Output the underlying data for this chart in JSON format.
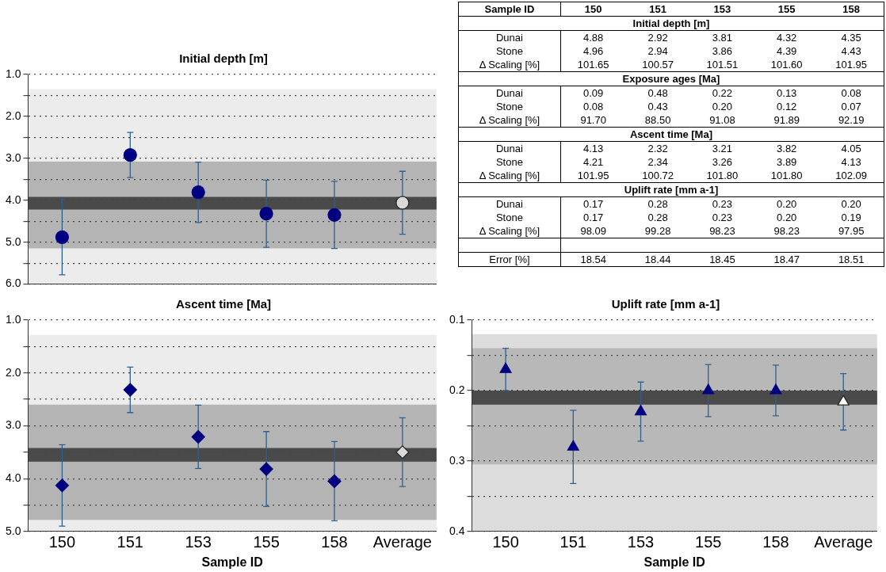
{
  "chart_data": [
    {
      "type": "scatter",
      "title": "Initial depth [m]",
      "categories": [
        null,
        null,
        null,
        null,
        null,
        null
      ],
      "series": [
        {
          "colors": [
            "#000080",
            "#000080",
            "#000080",
            "#000080",
            "#000080",
            "#d9d9d9"
          ],
          "values": [
            4.88,
            2.92,
            3.81,
            4.32,
            4.35,
            4.06
          ],
          "errors": [
            0.9,
            0.54,
            0.72,
            0.8,
            0.8,
            0.75
          ]
        }
      ],
      "ylim": [
        6,
        1
      ],
      "yticks": [
        {
          "value": 1,
          "label": "1.0"
        },
        {
          "value": 1.5,
          "label": null
        },
        {
          "value": 2,
          "label": "2.0"
        },
        {
          "value": 2.5,
          "label": null
        },
        {
          "value": 3,
          "label": "3.0"
        },
        {
          "value": 3.5,
          "label": null
        },
        {
          "value": 4,
          "label": "4.0"
        },
        {
          "value": 4.5,
          "label": null
        },
        {
          "value": 5,
          "label": "5.0"
        },
        {
          "value": 5.5,
          "label": null
        },
        {
          "value": 6,
          "label": "6.0"
        }
      ],
      "marker": "circle",
      "grid": "y",
      "tick_labels": "y",
      "bands": [
        {
          "axis": "y",
          "from": 1.35,
          "to": 6,
          "color": "#ececec"
        },
        {
          "axis": "y",
          "from": 3.08,
          "to": 5.15,
          "color": "#b4b4b4"
        },
        {
          "axis": "y",
          "from": 3.92,
          "to": 4.22,
          "color": "#4a4a4a"
        }
      ]
    },
    {
      "type": "other",
      "categories": [
        "Sample ID",
        "150",
        "151",
        "153",
        "155",
        "158"
      ],
      "y_categories": [
        "Initial depth [m]",
        "Dunai",
        "Stone",
        "Δ Scaling [%]",
        "Exposure ages [Ma]",
        "Dunai",
        "Stone",
        "Δ Scaling [%]",
        "Ascent time [Ma]",
        "Dunai",
        "Stone",
        "Δ Scaling [%]",
        "Uplift rate [mm a-1]",
        "Dunai",
        "Stone",
        "Δ Scaling [%]",
        null,
        "Error [%]"
      ],
      "cell_labels": [
        null,
        [
          "4.88",
          "2.92",
          "3.81",
          "4.32",
          "4.35"
        ],
        [
          "4.96",
          "2.94",
          "3.86",
          "4.39",
          "4.43"
        ],
        [
          "101.65",
          "100.57",
          "101.51",
          "101.60",
          "101.95"
        ],
        null,
        [
          "0.09",
          "0.48",
          "0.22",
          "0.13",
          "0.08"
        ],
        [
          "0.08",
          "0.43",
          "0.20",
          "0.12",
          "0.07"
        ],
        [
          "91.70",
          "88.50",
          "91.08",
          "91.89",
          "92.19"
        ],
        null,
        [
          "4.13",
          "2.32",
          "3.21",
          "3.82",
          "4.05"
        ],
        [
          "4.21",
          "2.34",
          "3.26",
          "3.89",
          "4.13"
        ],
        [
          "101.95",
          "100.72",
          "101.80",
          "101.80",
          "102.09"
        ],
        null,
        [
          "0.17",
          "0.28",
          "0.23",
          "0.20",
          "0.20"
        ],
        [
          "0.17",
          "0.28",
          "0.23",
          "0.20",
          "0.19"
        ],
        [
          "98.09",
          "99.28",
          "98.23",
          "98.23",
          "97.95"
        ],
        null,
        [
          "18.54",
          "18.44",
          "18.45",
          "18.47",
          "18.51"
        ]
      ]
    },
    {
      "type": "scatter",
      "title": "Ascent time [Ma]",
      "xlabel": "Sample ID",
      "categories": [
        "150",
        "151",
        "153",
        "155",
        "158",
        "Average"
      ],
      "series": [
        {
          "colors": [
            "#000080",
            "#000080",
            "#000080",
            "#000080",
            "#000080",
            "#d9d9d9"
          ],
          "values": [
            4.13,
            2.32,
            3.21,
            3.82,
            4.05,
            3.5
          ],
          "errors": [
            0.77,
            0.43,
            0.6,
            0.71,
            0.75,
            0.65
          ]
        }
      ],
      "ylim": [
        5,
        1
      ],
      "yticks": [
        {
          "value": 1,
          "label": "1.0"
        },
        {
          "value": 1.5,
          "label": null
        },
        {
          "value": 2,
          "label": "2.0"
        },
        {
          "value": 2.5,
          "label": null
        },
        {
          "value": 3,
          "label": "3.0"
        },
        {
          "value": 3.5,
          "label": null
        },
        {
          "value": 4,
          "label": "4.0"
        },
        {
          "value": 4.5,
          "label": null
        },
        {
          "value": 5,
          "label": "5.0"
        }
      ],
      "marker": "diamond",
      "grid": "y",
      "bands": [
        {
          "axis": "y",
          "from": 1.28,
          "to": 5,
          "color": "#ececec"
        },
        {
          "axis": "y",
          "from": 2.6,
          "to": 4.78,
          "color": "#b4b4b4"
        },
        {
          "axis": "y",
          "from": 3.42,
          "to": 3.68,
          "color": "#4a4a4a"
        }
      ]
    },
    {
      "type": "scatter",
      "title": "Uplift rate [mm a-1]",
      "xlabel": "Sample ID",
      "categories": [
        "150",
        "151",
        "153",
        "155",
        "158",
        "Average"
      ],
      "series": [
        {
          "colors": [
            "#000080",
            "#000080",
            "#000080",
            "#000080",
            "#000080",
            "#ffffff"
          ],
          "values": [
            0.17,
            0.28,
            0.23,
            0.2,
            0.2,
            0.216
          ],
          "errors": [
            0.03,
            0.052,
            0.042,
            0.037,
            0.036,
            0.04
          ]
        }
      ],
      "ylim": [
        0.4,
        0.1
      ],
      "yticks": [
        0.1,
        {
          "value": 0.15,
          "label": null
        },
        0.2,
        {
          "value": 0.25,
          "label": null
        },
        0.3,
        {
          "value": 0.35,
          "label": null
        },
        0.4
      ],
      "marker": "triangle",
      "grid": "y",
      "bands": [
        {
          "axis": "y",
          "from": 0.12,
          "to": 0.4,
          "color": "#dcdcdc"
        },
        {
          "axis": "y",
          "from": 0.14,
          "to": 0.305,
          "color": "#b8b8b8"
        },
        {
          "axis": "y",
          "from": 0.2,
          "to": 0.22,
          "color": "#4a4a4a"
        }
      ]
    }
  ]
}
